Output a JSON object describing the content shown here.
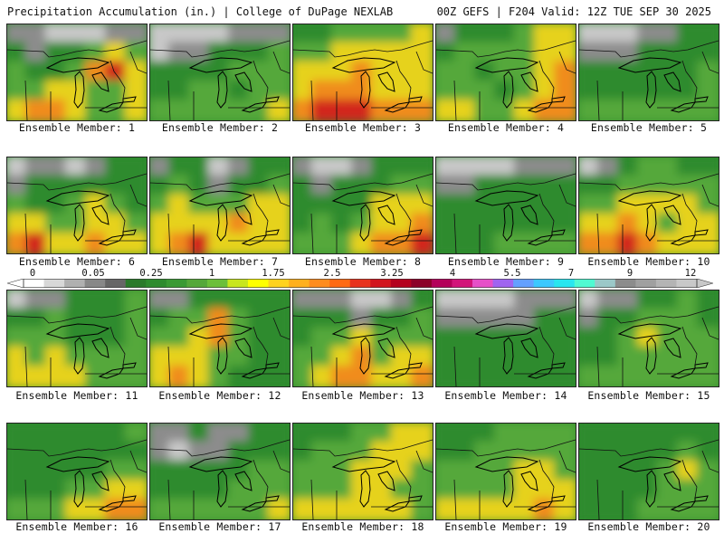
{
  "header": {
    "title": "Precipitation Accumulation (in.) | College of DuPage NEXLAB",
    "run_info": "00Z GEFS | F204 Valid: 12Z TUE SEP 30 2025"
  },
  "members": [
    {
      "label": "Ensemble Member: 1",
      "pattern": [
        [
          1,
          1,
          0,
          0,
          0,
          1,
          1
        ],
        [
          2,
          1,
          2,
          2,
          3,
          4,
          3
        ],
        [
          3,
          2,
          2,
          3,
          5,
          6,
          4
        ],
        [
          3,
          3,
          4,
          4,
          3,
          3,
          4
        ],
        [
          4,
          5,
          5,
          4,
          3,
          3,
          4
        ]
      ]
    },
    {
      "label": "Ensemble Member: 2",
      "pattern": [
        [
          0,
          0,
          0,
          0,
          1,
          1,
          1
        ],
        [
          0,
          1,
          1,
          2,
          2,
          2,
          3
        ],
        [
          2,
          2,
          2,
          2,
          3,
          3,
          3
        ],
        [
          2,
          2,
          3,
          3,
          2,
          3,
          3
        ],
        [
          3,
          3,
          3,
          3,
          3,
          3,
          4
        ]
      ]
    },
    {
      "label": "Ensemble Member: 3",
      "pattern": [
        [
          2,
          2,
          3,
          3,
          3,
          3,
          4
        ],
        [
          3,
          3,
          4,
          4,
          4,
          4,
          4
        ],
        [
          4,
          4,
          4,
          5,
          4,
          4,
          4
        ],
        [
          4,
          5,
          5,
          5,
          4,
          4,
          4
        ],
        [
          5,
          6,
          6,
          6,
          5,
          5,
          5
        ]
      ]
    },
    {
      "label": "Ensemble Member: 4",
      "pattern": [
        [
          1,
          2,
          2,
          2,
          3,
          4,
          4
        ],
        [
          2,
          3,
          3,
          3,
          3,
          4,
          4
        ],
        [
          3,
          3,
          2,
          3,
          3,
          4,
          5
        ],
        [
          3,
          3,
          3,
          2,
          3,
          4,
          5
        ],
        [
          4,
          4,
          3,
          3,
          4,
          5,
          5
        ]
      ]
    },
    {
      "label": "Ensemble Member: 5",
      "pattern": [
        [
          0,
          0,
          0,
          1,
          1,
          2,
          2
        ],
        [
          1,
          1,
          1,
          2,
          2,
          2,
          2
        ],
        [
          2,
          2,
          2,
          2,
          2,
          2,
          3
        ],
        [
          2,
          2,
          2,
          2,
          2,
          2,
          3
        ],
        [
          3,
          3,
          3,
          3,
          3,
          3,
          3
        ]
      ]
    },
    {
      "label": "Ensemble Member: 6",
      "pattern": [
        [
          0,
          1,
          1,
          0,
          1,
          2,
          2
        ],
        [
          1,
          2,
          2,
          2,
          2,
          2,
          2
        ],
        [
          3,
          2,
          2,
          3,
          4,
          3,
          2
        ],
        [
          4,
          4,
          3,
          3,
          4,
          4,
          3
        ],
        [
          5,
          6,
          4,
          4,
          5,
          4,
          4
        ]
      ]
    },
    {
      "label": "Ensemble Member: 7",
      "pattern": [
        [
          1,
          2,
          2,
          0,
          1,
          2,
          2
        ],
        [
          2,
          3,
          2,
          1,
          2,
          2,
          3
        ],
        [
          3,
          4,
          3,
          3,
          3,
          4,
          4
        ],
        [
          4,
          4,
          4,
          4,
          5,
          4,
          4
        ],
        [
          4,
          5,
          6,
          4,
          4,
          4,
          4
        ]
      ]
    },
    {
      "label": "Ensemble Member: 8",
      "pattern": [
        [
          1,
          0,
          0,
          1,
          2,
          2,
          2
        ],
        [
          2,
          1,
          2,
          2,
          2,
          3,
          3
        ],
        [
          2,
          2,
          2,
          2,
          4,
          4,
          4
        ],
        [
          2,
          3,
          2,
          3,
          4,
          4,
          5
        ],
        [
          3,
          3,
          3,
          4,
          5,
          5,
          6
        ]
      ]
    },
    {
      "label": "Ensemble Member: 9",
      "pattern": [
        [
          0,
          0,
          0,
          0,
          1,
          1,
          1
        ],
        [
          1,
          1,
          2,
          2,
          2,
          2,
          2
        ],
        [
          2,
          2,
          2,
          2,
          2,
          2,
          2
        ],
        [
          2,
          2,
          2,
          2,
          2,
          2,
          2
        ],
        [
          2,
          2,
          2,
          3,
          3,
          3,
          3
        ]
      ]
    },
    {
      "label": "Ensemble Member: 10",
      "pattern": [
        [
          0,
          1,
          2,
          3,
          3,
          2,
          2
        ],
        [
          2,
          2,
          3,
          3,
          3,
          3,
          3
        ],
        [
          3,
          3,
          4,
          4,
          4,
          4,
          3
        ],
        [
          4,
          4,
          5,
          4,
          3,
          4,
          4
        ],
        [
          5,
          5,
          6,
          5,
          4,
          4,
          4
        ]
      ]
    },
    {
      "label": "Ensemble Member: 11",
      "pattern": [
        [
          0,
          1,
          1,
          2,
          2,
          2,
          3
        ],
        [
          2,
          2,
          3,
          2,
          2,
          2,
          3
        ],
        [
          3,
          3,
          3,
          2,
          2,
          2,
          3
        ],
        [
          4,
          3,
          4,
          3,
          3,
          3,
          3
        ],
        [
          4,
          4,
          4,
          4,
          3,
          3,
          3
        ]
      ]
    },
    {
      "label": "Ensemble Member: 12",
      "pattern": [
        [
          1,
          1,
          2,
          2,
          2,
          2,
          2
        ],
        [
          2,
          3,
          3,
          5,
          3,
          2,
          2
        ],
        [
          3,
          3,
          4,
          5,
          3,
          2,
          2
        ],
        [
          4,
          4,
          4,
          3,
          3,
          2,
          2
        ],
        [
          4,
          5,
          4,
          3,
          2,
          2,
          2
        ]
      ]
    },
    {
      "label": "Ensemble Member: 13",
      "pattern": [
        [
          1,
          1,
          1,
          0,
          0,
          1,
          2
        ],
        [
          2,
          2,
          2,
          1,
          2,
          2,
          3
        ],
        [
          2,
          3,
          3,
          4,
          3,
          3,
          3
        ],
        [
          3,
          3,
          4,
          5,
          3,
          4,
          4
        ],
        [
          3,
          4,
          5,
          5,
          4,
          4,
          5
        ]
      ]
    },
    {
      "label": "Ensemble Member: 14",
      "pattern": [
        [
          0,
          0,
          0,
          0,
          1,
          1,
          1
        ],
        [
          1,
          1,
          1,
          1,
          1,
          2,
          2
        ],
        [
          2,
          2,
          2,
          2,
          2,
          2,
          2
        ],
        [
          2,
          2,
          2,
          2,
          2,
          2,
          2
        ],
        [
          2,
          2,
          2,
          2,
          2,
          2,
          2
        ]
      ]
    },
    {
      "label": "Ensemble Member: 15",
      "pattern": [
        [
          0,
          1,
          1,
          2,
          2,
          3,
          2
        ],
        [
          1,
          2,
          2,
          3,
          3,
          3,
          2
        ],
        [
          2,
          2,
          3,
          4,
          3,
          3,
          3
        ],
        [
          2,
          2,
          3,
          3,
          3,
          3,
          3
        ],
        [
          3,
          3,
          3,
          3,
          3,
          3,
          3
        ]
      ]
    },
    {
      "label": "Ensemble Member: 16",
      "pattern": [
        [
          2,
          2,
          2,
          2,
          2,
          2,
          3
        ],
        [
          2,
          2,
          2,
          2,
          2,
          2,
          2
        ],
        [
          2,
          2,
          2,
          2,
          2,
          3,
          3
        ],
        [
          2,
          2,
          2,
          3,
          3,
          4,
          4
        ],
        [
          3,
          3,
          3,
          4,
          4,
          5,
          5
        ]
      ]
    },
    {
      "label": "Ensemble Member: 17",
      "pattern": [
        [
          1,
          1,
          2,
          1,
          1,
          2,
          2
        ],
        [
          1,
          0,
          1,
          1,
          2,
          2,
          2
        ],
        [
          2,
          2,
          2,
          2,
          2,
          3,
          3
        ],
        [
          2,
          2,
          2,
          2,
          3,
          3,
          3
        ],
        [
          3,
          3,
          3,
          3,
          3,
          3,
          4
        ]
      ]
    },
    {
      "label": "Ensemble Member: 18",
      "pattern": [
        [
          2,
          2,
          2,
          3,
          3,
          4,
          4
        ],
        [
          2,
          3,
          3,
          3,
          4,
          4,
          4
        ],
        [
          3,
          3,
          3,
          4,
          4,
          4,
          3
        ],
        [
          3,
          3,
          3,
          4,
          4,
          3,
          3
        ],
        [
          4,
          4,
          4,
          4,
          4,
          4,
          3
        ]
      ]
    },
    {
      "label": "Ensemble Member: 19",
      "pattern": [
        [
          2,
          2,
          2,
          3,
          3,
          3,
          3
        ],
        [
          2,
          2,
          3,
          3,
          3,
          3,
          3
        ],
        [
          3,
          3,
          3,
          3,
          4,
          4,
          3
        ],
        [
          3,
          3,
          3,
          3,
          4,
          4,
          4
        ],
        [
          4,
          4,
          4,
          4,
          4,
          5,
          4
        ]
      ]
    },
    {
      "label": "Ensemble Member: 20",
      "pattern": [
        [
          2,
          2,
          2,
          2,
          2,
          2,
          2
        ],
        [
          2,
          2,
          2,
          2,
          2,
          3,
          2
        ],
        [
          2,
          2,
          2,
          2,
          3,
          4,
          3
        ],
        [
          2,
          2,
          2,
          2,
          3,
          3,
          3
        ],
        [
          2,
          2,
          2,
          3,
          3,
          3,
          3
        ]
      ]
    }
  ],
  "fill_palette": [
    "#c8c8c8",
    "#8c8c8c",
    "#2e8b2e",
    "#55a83a",
    "#e6d21e",
    "#f08c1e",
    "#d2281e"
  ],
  "colorbar": {
    "labels": [
      "0",
      "0.05",
      "0.25",
      "1",
      "1.75",
      "2.5",
      "3.25",
      "4",
      "5.5",
      "7",
      "9",
      "12"
    ],
    "colors": [
      "#ffffff",
      "#d8d8d8",
      "#b0b0b0",
      "#888888",
      "#666666",
      "#2a7a2a",
      "#2e8b2e",
      "#3a9a34",
      "#55a83a",
      "#6cbf3a",
      "#c8e61e",
      "#ffff00",
      "#ffd21e",
      "#ffb01e",
      "#ff8c1e",
      "#ff6a14",
      "#e8321e",
      "#d2141e",
      "#b4001e",
      "#8c0028",
      "#b4005a",
      "#d2147a",
      "#e650c8",
      "#a064f0",
      "#64a0ff",
      "#3cc8ff",
      "#28e6f0",
      "#50fad2",
      "#9bc8c8",
      "#8c8c8c",
      "#a0a0a0",
      "#b4b4b4",
      "#c8c8c8"
    ]
  }
}
